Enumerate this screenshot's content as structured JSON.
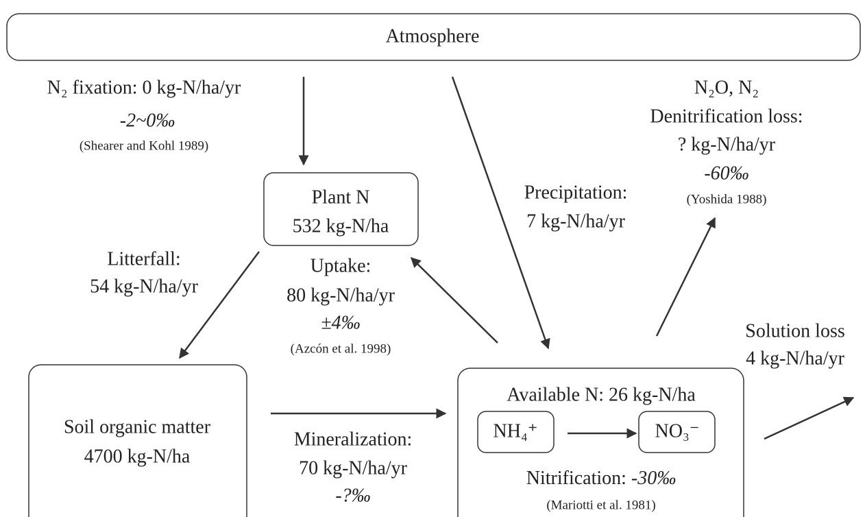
{
  "atmosphere": "Atmosphere",
  "nodes": {
    "plant": {
      "name": "Plant N",
      "amount": "532 kg-N/ha"
    },
    "soil": {
      "name": "Soil organic matter",
      "amount": "4700 kg-N/ha"
    },
    "available": {
      "name": "Available N: 26 kg-N/ha",
      "nh4": "NH₄⁺",
      "no3": "NO₃⁻"
    }
  },
  "flows": {
    "fixation": {
      "label": "N₂ fixation: 0 kg-N/ha/yr",
      "isotope": "-2~0‰",
      "reference": "(Shearer and Kohl 1989)"
    },
    "precipitation": {
      "label": "Precipitation:",
      "rate": "7 kg-N/ha/yr"
    },
    "denitrification": {
      "gases": "N₂O, N₂",
      "label": "Denitrification loss:",
      "rate": "? kg-N/ha/yr",
      "isotope": "-60‰",
      "reference": "(Yoshida 1988)"
    },
    "litterfall": {
      "label": "Litterfall:",
      "rate": "54 kg-N/ha/yr"
    },
    "uptake": {
      "label": "Uptake:",
      "rate": "80 kg-N/ha/yr",
      "isotope": "±4‰",
      "reference": "(Azcón et al. 1998)"
    },
    "mineralization": {
      "label": "Mineralization:",
      "rate": "70 kg-N/ha/yr",
      "isotope": "-?‰"
    },
    "nitrification": {
      "label": "Nitrification: ",
      "isotope": "-30‰",
      "reference": "(Mariotti et al. 1981)"
    },
    "solution_loss": {
      "label": "Solution loss",
      "rate": "4 kg-N/ha/yr"
    }
  }
}
